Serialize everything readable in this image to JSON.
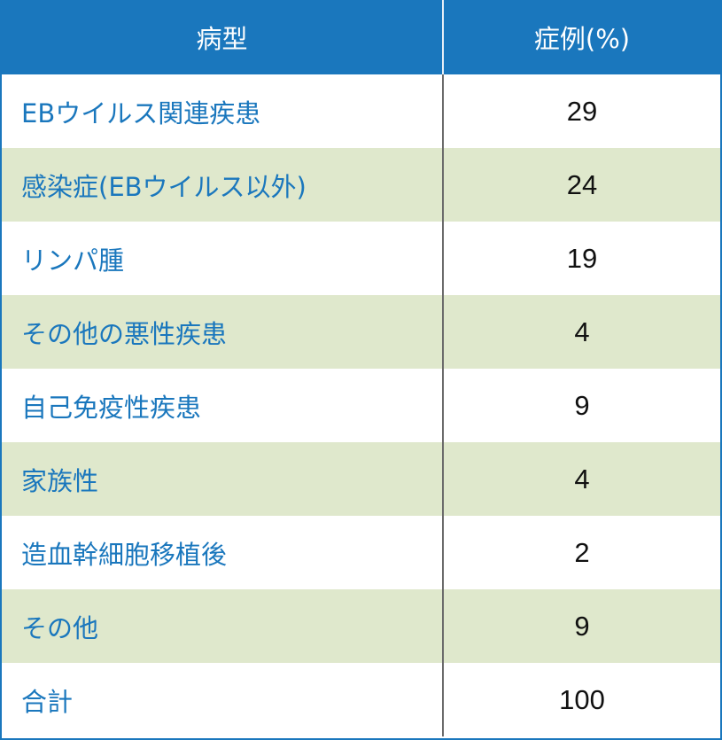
{
  "header": {
    "type": "病型",
    "cases": "症例(%)"
  },
  "rows": [
    {
      "type": "EBウイルス関連疾患",
      "cases": "29"
    },
    {
      "type": "感染症(EBウイルス以外)",
      "cases": "24"
    },
    {
      "type": "リンパ腫",
      "cases": "19"
    },
    {
      "type": "その他の悪性疾患",
      "cases": "4"
    },
    {
      "type": "自己免疫性疾患",
      "cases": "9"
    },
    {
      "type": "家族性",
      "cases": "4"
    },
    {
      "type": "造血幹細胞移植後",
      "cases": "2"
    },
    {
      "type": "その他",
      "cases": "9"
    },
    {
      "type": "合計",
      "cases": "100"
    }
  ],
  "colors": {
    "header_bg": "#1a77bd",
    "alt_row_bg": "#dfe8cc",
    "label_text": "#1a77bd"
  }
}
